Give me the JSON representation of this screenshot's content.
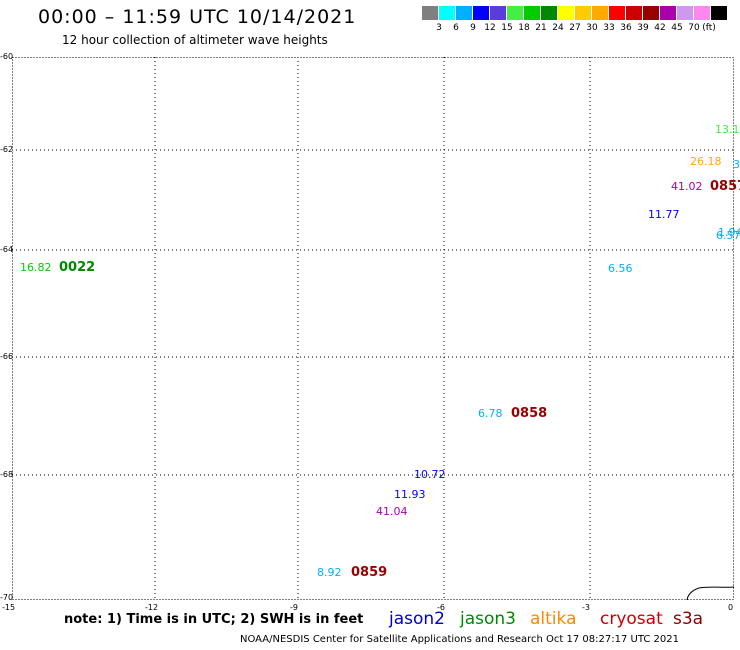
{
  "header": {
    "title": "00:00 – 11:59 UTC 10/14/2021",
    "subtitle": "12 hour collection of altimeter wave heights"
  },
  "scale": {
    "colors": [
      "#7f7f7f",
      "#00ffff",
      "#00b0ff",
      "#0000ff",
      "#5a3cdc",
      "#44ee44",
      "#00cc00",
      "#008800",
      "#ffff00",
      "#ffcc00",
      "#ffaa00",
      "#ff0000",
      "#cc0000",
      "#990000",
      "#aa00aa",
      "#cc99ee",
      "#ff88ee",
      "#000000"
    ],
    "labels": [
      "3",
      "6",
      "9",
      "12",
      "15",
      "18",
      "21",
      "24",
      "27",
      "30",
      "33",
      "36",
      "39",
      "42",
      "45",
      "70"
    ],
    "unit": "(ft)"
  },
  "axes": {
    "y_labels": [
      "-60",
      "-62",
      "-64",
      "-66",
      "-68",
      "-70"
    ],
    "x_labels": [
      "-15",
      "-12",
      "-9",
      "-6",
      "-3",
      "0"
    ]
  },
  "observations": [
    {
      "text": "13.1",
      "color": "#44ee44"
    },
    {
      "text": "26.18",
      "color": "#ffaa00"
    },
    {
      "text": "3",
      "color": "#00b0ff"
    },
    {
      "text": "41.02",
      "color": "#aa00aa"
    },
    {
      "text": "11.77",
      "color": "#0000ff"
    },
    {
      "text": "1.94",
      "color": "#00b0ff"
    },
    {
      "text": "6.57",
      "color": "#00b0ff"
    },
    {
      "text": "6.56",
      "color": "#00b0ff"
    },
    {
      "text": "16.82",
      "color": "#00cc00"
    },
    {
      "text": "6.78",
      "color": "#00b0ff"
    },
    {
      "text": "10.72",
      "color": "#0000ff"
    },
    {
      "text": "11.93",
      "color": "#0000ff"
    },
    {
      "text": "41.04",
      "color": "#aa00aa"
    },
    {
      "text": "8.92",
      "color": "#00b0ff"
    }
  ],
  "pass_times": [
    {
      "text": "0857",
      "color": "#990000"
    },
    {
      "text": "0022",
      "color": "#008800"
    },
    {
      "text": "0858",
      "color": "#990000"
    },
    {
      "text": "0859",
      "color": "#990000"
    }
  ],
  "footer": {
    "note": "note: 1) Time is in UTC; 2) SWH is in feet",
    "satellites": [
      {
        "name": "jason2",
        "color": "#0000cc"
      },
      {
        "name": "jason3",
        "color": "#008800"
      },
      {
        "name": "altika",
        "color": "#ff8800"
      },
      {
        "name": "cryosat",
        "color": "#cc0000"
      },
      {
        "name": "s3a",
        "color": "#880000"
      }
    ],
    "credit": "NOAA/NESDIS Center for Satellite Applications and Research    Oct 17 08:27:17 UTC 2021"
  }
}
